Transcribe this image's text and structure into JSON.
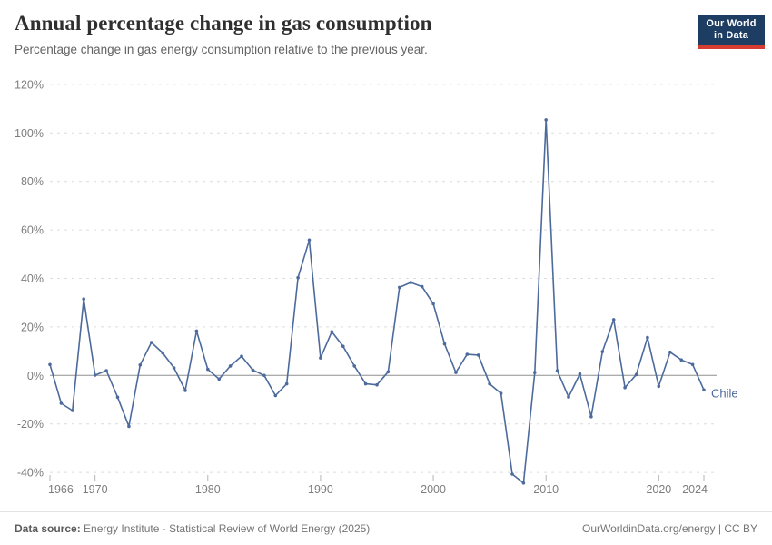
{
  "header": {
    "title": "Annual percentage change in gas consumption",
    "subtitle": "Percentage change in gas energy consumption relative to the previous year.",
    "logo": {
      "line1": "Our World",
      "line2": "in Data"
    }
  },
  "footer": {
    "datasource_label": "Data source:",
    "datasource_text": " Energy Institute - Statistical Review of World Energy (2025)",
    "link_text": "OurWorldinData.org/energy | CC BY"
  },
  "colors": {
    "line": "#4C6A9C",
    "logo_navy": "#1D3D63",
    "logo_red": "#D73C33",
    "grid": "#DCDCDC",
    "zero_line": "#8F8F8F",
    "tick_text": "#7D7D7D"
  },
  "chart_data": {
    "type": "line",
    "title": "Annual percentage change in gas consumption",
    "subtitle": "Percentage change in gas energy consumption relative to the previous year.",
    "entity": "Chile",
    "unit": "%",
    "xlabel": "",
    "ylabel": "",
    "grid": "horizontal-dashed",
    "legend": "label-at-line-end",
    "ylim": [
      -50,
      126
    ],
    "xlim": [
      1966,
      2024
    ],
    "yticks": [
      120,
      100,
      80,
      60,
      40,
      20,
      0,
      -20,
      -40
    ],
    "xticks": [
      1966,
      1970,
      1980,
      1990,
      2000,
      2010,
      2020,
      2024
    ],
    "x": [
      1966,
      1967,
      1968,
      1969,
      1970,
      1971,
      1972,
      1973,
      1974,
      1975,
      1976,
      1977,
      1978,
      1979,
      1980,
      1981,
      1982,
      1983,
      1984,
      1985,
      1986,
      1987,
      1988,
      1989,
      1990,
      1991,
      1992,
      1993,
      1994,
      1995,
      1996,
      1997,
      1998,
      1999,
      2000,
      2001,
      2002,
      2003,
      2004,
      2005,
      2006,
      2007,
      2008,
      2009,
      2010,
      2011,
      2012,
      2013,
      2014,
      2015,
      2016,
      2017,
      2018,
      2019,
      2020,
      2021,
      2022,
      2023,
      2024
    ],
    "series": [
      {
        "name": "Chile",
        "color": "#4C6A9C",
        "values": [
          4.5,
          -11.5,
          -14.5,
          31.5,
          0.1,
          2.0,
          -9.0,
          -21.0,
          4.3,
          13.6,
          9.3,
          3.1,
          -6.2,
          18.3,
          2.5,
          -1.5,
          3.9,
          7.9,
          2.2,
          0.0,
          -8.3,
          -3.5,
          40.3,
          55.8,
          7.2,
          18.0,
          12.0,
          3.9,
          -3.5,
          -3.9,
          1.5,
          36.3,
          38.3,
          36.6,
          29.5,
          13.0,
          1.2,
          8.7,
          8.4,
          -3.5,
          -7.4,
          -40.7,
          -44.4,
          1.2,
          105.4,
          1.9,
          -8.9,
          0.6,
          -17.0,
          9.8,
          23.0,
          -5.0,
          0.3,
          15.6,
          -4.5,
          9.6,
          6.4,
          4.5,
          -6.0
        ]
      }
    ]
  }
}
